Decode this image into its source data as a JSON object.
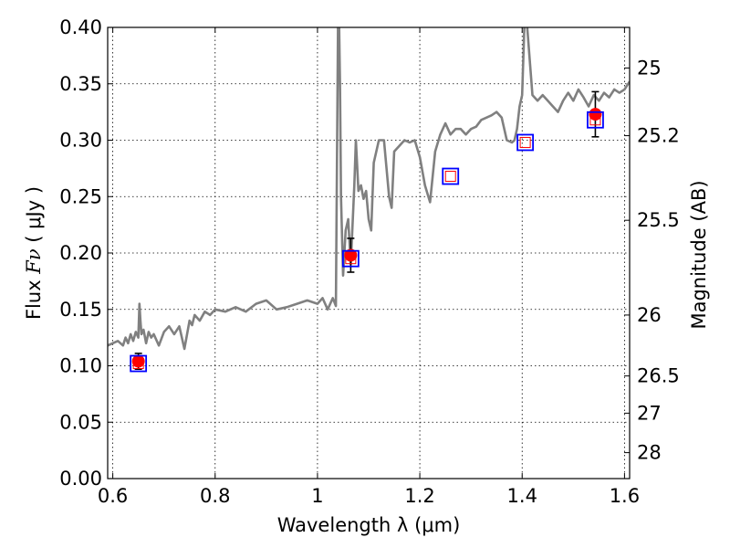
{
  "chart_data": {
    "type": "line",
    "xlabel": "Wavelength  λ (μm)",
    "ylabel_prefix": "Flux ",
    "ylabel_symbol": "Fν",
    "ylabel_unit": " ( μJy )",
    "y2label": "Magnitude (AB)",
    "xlim": [
      0.59,
      1.61
    ],
    "ylim": [
      0,
      0.4
    ],
    "grid": true,
    "x_ticks": [
      0.6,
      0.8,
      1.0,
      1.2,
      1.4,
      1.6
    ],
    "x_tick_labels": [
      "0.6",
      "0.8",
      "1",
      "1.2",
      "1.4",
      "1.6"
    ],
    "y_ticks": [
      0,
      0.05,
      0.1,
      0.15,
      0.2,
      0.25,
      0.3,
      0.35,
      0.4
    ],
    "y_tick_labels": [
      "0.00",
      "0.05",
      "0.10",
      "0.15",
      "0.20",
      "0.25",
      "0.30",
      "0.35",
      "0.40"
    ],
    "y2_ticks": [
      {
        "flux": 0.364,
        "label": "25"
      },
      {
        "flux": 0.304,
        "label": "25.2"
      },
      {
        "flux": 0.229,
        "label": "25.5"
      },
      {
        "flux": 0.145,
        "label": "26"
      },
      {
        "flux": 0.091,
        "label": "26.5"
      },
      {
        "flux": 0.058,
        "label": "27"
      },
      {
        "flux": 0.023,
        "label": "28"
      }
    ],
    "series": [
      {
        "kind": "model_sed",
        "color": "#808080",
        "x": [
          0.59,
          0.6,
          0.61,
          0.62,
          0.625,
          0.63,
          0.635,
          0.64,
          0.645,
          0.65,
          0.652,
          0.654,
          0.656,
          0.66,
          0.665,
          0.67,
          0.675,
          0.68,
          0.69,
          0.7,
          0.71,
          0.72,
          0.73,
          0.74,
          0.75,
          0.755,
          0.76,
          0.77,
          0.78,
          0.79,
          0.8,
          0.82,
          0.84,
          0.86,
          0.88,
          0.9,
          0.92,
          0.94,
          0.96,
          0.98,
          1.0,
          1.01,
          1.02,
          1.03,
          1.036,
          1.04,
          1.042,
          1.044,
          1.046,
          1.05,
          1.055,
          1.06,
          1.065,
          1.07,
          1.072,
          1.075,
          1.08,
          1.085,
          1.09,
          1.095,
          1.1,
          1.105,
          1.11,
          1.12,
          1.13,
          1.14,
          1.145,
          1.15,
          1.16,
          1.17,
          1.18,
          1.19,
          1.2,
          1.21,
          1.22,
          1.23,
          1.24,
          1.25,
          1.26,
          1.27,
          1.28,
          1.29,
          1.3,
          1.31,
          1.32,
          1.33,
          1.34,
          1.35,
          1.36,
          1.37,
          1.38,
          1.385,
          1.39,
          1.395,
          1.4,
          1.405,
          1.41,
          1.42,
          1.43,
          1.44,
          1.45,
          1.46,
          1.47,
          1.48,
          1.49,
          1.5,
          1.51,
          1.52,
          1.53,
          1.54,
          1.55,
          1.56,
          1.57,
          1.58,
          1.59,
          1.6,
          1.61
        ],
        "y": [
          0.118,
          0.12,
          0.122,
          0.118,
          0.125,
          0.12,
          0.128,
          0.122,
          0.13,
          0.125,
          0.155,
          0.14,
          0.128,
          0.132,
          0.12,
          0.13,
          0.125,
          0.128,
          0.118,
          0.13,
          0.135,
          0.128,
          0.135,
          0.115,
          0.14,
          0.136,
          0.145,
          0.14,
          0.148,
          0.145,
          0.15,
          0.148,
          0.152,
          0.148,
          0.155,
          0.158,
          0.15,
          0.152,
          0.155,
          0.158,
          0.155,
          0.16,
          0.15,
          0.16,
          0.153,
          0.4,
          0.41,
          0.35,
          0.25,
          0.18,
          0.22,
          0.23,
          0.19,
          0.24,
          0.26,
          0.3,
          0.255,
          0.26,
          0.248,
          0.255,
          0.23,
          0.22,
          0.28,
          0.3,
          0.3,
          0.25,
          0.24,
          0.29,
          0.295,
          0.3,
          0.298,
          0.3,
          0.285,
          0.26,
          0.245,
          0.29,
          0.305,
          0.315,
          0.305,
          0.31,
          0.31,
          0.305,
          0.31,
          0.312,
          0.318,
          0.32,
          0.322,
          0.325,
          0.32,
          0.3,
          0.298,
          0.3,
          0.31,
          0.33,
          0.34,
          0.41,
          0.4,
          0.34,
          0.335,
          0.34,
          0.335,
          0.33,
          0.325,
          0.335,
          0.342,
          0.335,
          0.345,
          0.338,
          0.33,
          0.34,
          0.335,
          0.342,
          0.338,
          0.345,
          0.342,
          0.345,
          0.352
        ]
      },
      {
        "kind": "observed_photometry",
        "color": "#ff0000",
        "x": [
          0.65,
          1.065,
          1.543
        ],
        "y": [
          0.104,
          0.198,
          0.323
        ],
        "yerr": [
          0.007,
          0.015,
          0.02
        ]
      },
      {
        "kind": "model_photometry",
        "color": "#0000ff",
        "x": [
          0.65,
          1.065,
          1.26,
          1.406,
          1.543
        ],
        "y": [
          0.102,
          0.195,
          0.268,
          0.298,
          0.318
        ]
      }
    ]
  }
}
